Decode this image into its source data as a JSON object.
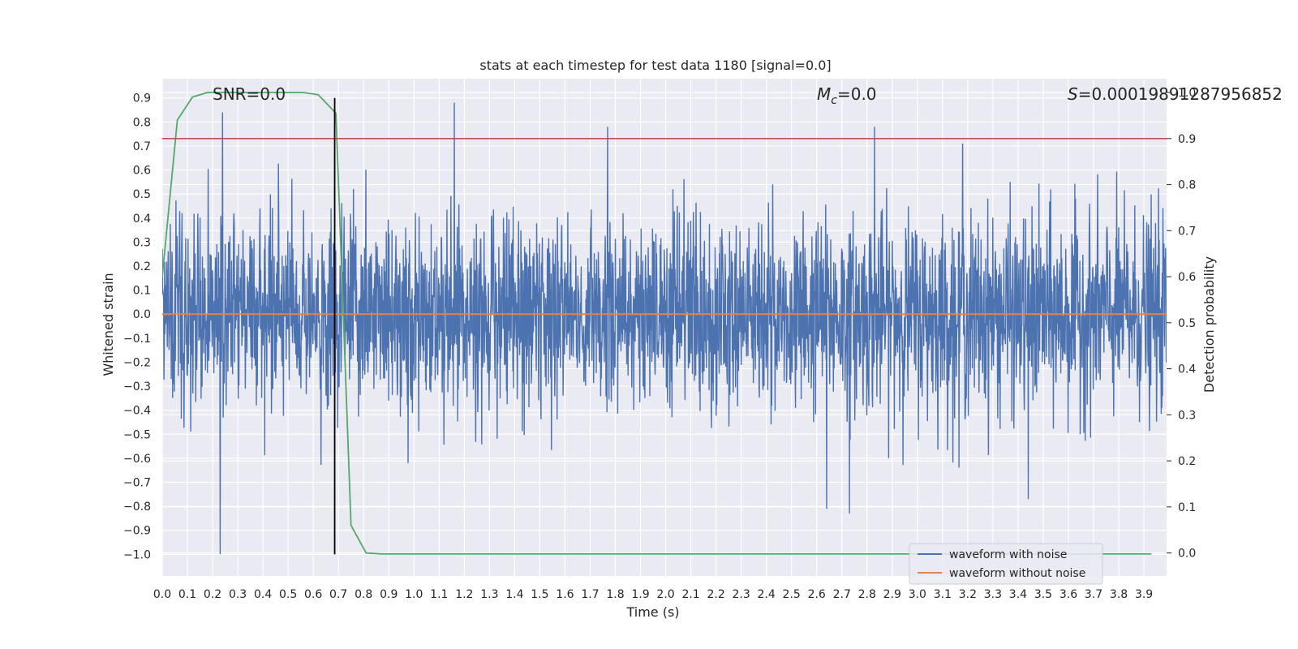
{
  "chart_data": {
    "type": "line",
    "title": "stats at each timestep for test data 1180 [signal=0.0]",
    "xlabel": "Time (s)",
    "ylabel_left": "Whitened strain",
    "ylabel_right": "Detection probability",
    "xlim": [
      0.0,
      3.99
    ],
    "ylim_left": [
      -1.09,
      0.98
    ],
    "ylim_right": [
      -0.05,
      1.03
    ],
    "x_ticks": [
      "0.0",
      "0.1",
      "0.2",
      "0.3",
      "0.4",
      "0.5",
      "0.6",
      "0.7",
      "0.8",
      "0.9",
      "1.0",
      "1.1",
      "1.2",
      "1.3",
      "1.4",
      "1.5",
      "1.6",
      "1.7",
      "1.8",
      "1.9",
      "2.0",
      "2.1",
      "2.2",
      "2.3",
      "2.4",
      "2.5",
      "2.6",
      "2.7",
      "2.8",
      "2.9",
      "3.0",
      "3.1",
      "3.2",
      "3.3",
      "3.4",
      "3.5",
      "3.6",
      "3.7",
      "3.8",
      "3.9"
    ],
    "y_ticks_left": [
      "0.9",
      "0.8",
      "0.7",
      "0.6",
      "0.5",
      "0.4",
      "0.3",
      "0.2",
      "0.1",
      "0.0",
      "−0.1",
      "−0.2",
      "−0.3",
      "−0.4",
      "−0.5",
      "−0.6",
      "−0.7",
      "−0.8",
      "−0.9",
      "−1.0"
    ],
    "y_ticks_right": [
      "1.0",
      "0.9",
      "0.8",
      "0.7",
      "0.6",
      "0.5",
      "0.4",
      "0.3",
      "0.2",
      "0.1",
      "0.0"
    ],
    "annotations": {
      "snr": "SNR=0.0",
      "mc_symbol": "M",
      "mc_sub": "c",
      "mc_value": "=0.0",
      "s_symbol": "S",
      "s_value": "=0.00019891287956852"
    },
    "series": [
      {
        "name": "waveform with noise",
        "color": "#4c72b0",
        "axis": "left",
        "description": "whitened noise, dense, amplitude mostly within ±0.5",
        "peak_values": [
          {
            "x": 0.24,
            "y": 0.84
          },
          {
            "x": 0.23,
            "y": -1.0
          },
          {
            "x": 1.16,
            "y": 0.88
          },
          {
            "x": 1.77,
            "y": 0.78
          },
          {
            "x": 2.83,
            "y": 0.78
          },
          {
            "x": 3.18,
            "y": 0.71
          },
          {
            "x": 2.73,
            "y": -0.83
          },
          {
            "x": 2.64,
            "y": -0.81
          },
          {
            "x": 3.44,
            "y": -0.77
          }
        ]
      },
      {
        "name": "waveform without noise",
        "color": "#dd8452",
        "axis": "left",
        "x": [
          0.0,
          3.99
        ],
        "y": [
          0.0,
          0.0
        ]
      },
      {
        "color": "#55a868",
        "axis": "right",
        "x": [
          0.0,
          0.06,
          0.12,
          0.18,
          0.25,
          0.31,
          0.37,
          0.43,
          0.5,
          0.56,
          0.62,
          0.69,
          0.75,
          0.81,
          0.87,
          0.94,
          1.0,
          1.5,
          2.0,
          2.5,
          3.0,
          3.5,
          3.93
        ],
        "y": [
          0.6,
          0.94,
          0.99,
          1.0,
          1.0,
          1.0,
          1.0,
          1.0,
          1.0,
          1.0,
          0.995,
          0.955,
          0.06,
          0.0,
          -0.002,
          -0.002,
          -0.002,
          -0.002,
          -0.002,
          -0.002,
          -0.002,
          -0.002,
          -0.002
        ]
      }
    ],
    "reference_lines": {
      "threshold": {
        "y_right": 0.9,
        "color": "#c44e52"
      },
      "vertical_marker": {
        "x": 0.685,
        "y_left_range": [
          -1.0,
          0.9
        ],
        "color": "#000000"
      }
    },
    "legend": {
      "placement": "lower-right",
      "entries": [
        {
          "label": "waveform with noise",
          "color": "#4c72b0"
        },
        {
          "label": "waveform without noise",
          "color": "#dd8452"
        }
      ]
    },
    "grid": true,
    "background": "#eaeaf2"
  }
}
